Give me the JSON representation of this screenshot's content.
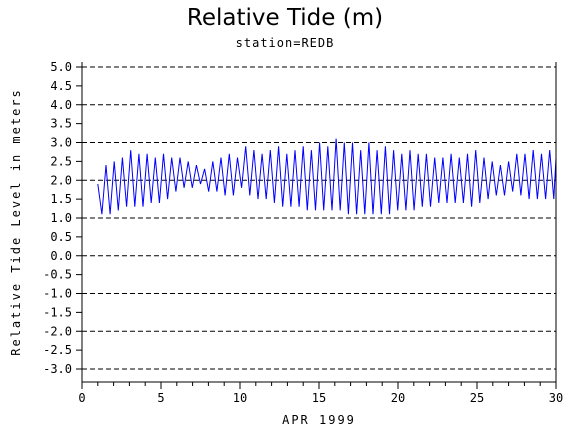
{
  "chart_data": {
    "type": "line",
    "title": "Relative Tide (m)",
    "subtitle": "station=REDB",
    "xlabel": "APR 1999",
    "ylabel": "Relative Tide Level in meters",
    "xlim": [
      0,
      30
    ],
    "ylim": [
      -3.0,
      5.0
    ],
    "xticks": [
      "0",
      "5",
      "10",
      "15",
      "20",
      "25",
      "30"
    ],
    "yticks": [
      "-3.0",
      "-2.5",
      "-2.0",
      "-1.5",
      "-1.0",
      "-0.5",
      "0.0",
      "0.5",
      "1.0",
      "1.5",
      "2.0",
      "2.5",
      "3.0",
      "3.5",
      "4.0",
      "4.5",
      "5.0"
    ],
    "gridlines_dashed_at": [
      -3,
      -2,
      -1,
      0,
      1,
      2,
      3,
      4,
      5
    ],
    "legend": "none",
    "series": [
      {
        "color": "#0000ff",
        "x": [
          1.0,
          1.26,
          1.52,
          1.78,
          2.04,
          2.3,
          2.56,
          2.82,
          3.08,
          3.34,
          3.6,
          3.86,
          4.12,
          4.38,
          4.64,
          4.9,
          5.16,
          5.42,
          5.68,
          5.94,
          6.2,
          6.46,
          6.72,
          6.98,
          7.24,
          7.5,
          7.76,
          8.02,
          8.28,
          8.54,
          8.8,
          9.06,
          9.32,
          9.58,
          9.84,
          10.1,
          10.36,
          10.62,
          10.88,
          11.14,
          11.4,
          11.66,
          11.92,
          12.18,
          12.44,
          12.7,
          12.96,
          13.22,
          13.48,
          13.74,
          14.0,
          14.26,
          14.52,
          14.78,
          15.04,
          15.3,
          15.56,
          15.82,
          16.08,
          16.34,
          16.6,
          16.86,
          17.12,
          17.38,
          17.64,
          17.9,
          18.16,
          18.42,
          18.68,
          18.94,
          19.2,
          19.46,
          19.72,
          19.98,
          20.24,
          20.5,
          20.76,
          21.02,
          21.28,
          21.54,
          21.8,
          22.06,
          22.32,
          22.58,
          22.84,
          23.1,
          23.36,
          23.62,
          23.88,
          24.14,
          24.4,
          24.66,
          24.92,
          25.18,
          25.44,
          25.7,
          25.96,
          26.22,
          26.48,
          26.74,
          27.0,
          27.26,
          27.52,
          27.78,
          28.04,
          28.3,
          28.56,
          28.82,
          29.08,
          29.34,
          29.6,
          29.86,
          30.0
        ],
        "y": [
          1.9,
          1.1,
          2.4,
          1.1,
          2.5,
          1.2,
          2.6,
          1.3,
          2.8,
          1.3,
          2.7,
          1.3,
          2.7,
          1.4,
          2.6,
          1.4,
          2.7,
          1.5,
          2.6,
          1.7,
          2.6,
          1.8,
          2.5,
          1.8,
          2.4,
          1.9,
          2.3,
          1.7,
          2.5,
          1.7,
          2.6,
          1.6,
          2.7,
          1.6,
          2.6,
          1.8,
          2.9,
          1.6,
          2.8,
          1.5,
          2.7,
          1.5,
          2.8,
          1.4,
          2.9,
          1.3,
          2.7,
          1.3,
          2.8,
          1.3,
          2.9,
          1.2,
          2.8,
          1.2,
          3.0,
          1.2,
          2.9,
          1.2,
          3.1,
          1.2,
          3.0,
          1.1,
          3.0,
          1.1,
          2.8,
          1.1,
          3.0,
          1.1,
          2.8,
          1.1,
          2.9,
          1.1,
          2.8,
          1.2,
          2.7,
          1.2,
          2.8,
          1.2,
          2.7,
          1.3,
          2.7,
          1.3,
          2.6,
          1.4,
          2.6,
          1.4,
          2.7,
          1.4,
          2.6,
          1.4,
          2.7,
          1.3,
          2.8,
          1.4,
          2.6,
          1.5,
          2.5,
          1.6,
          2.4,
          1.6,
          2.5,
          1.7,
          2.7,
          1.6,
          2.7,
          1.5,
          2.8,
          1.5,
          2.7,
          1.5,
          2.8,
          1.5,
          2.6
        ]
      }
    ]
  }
}
